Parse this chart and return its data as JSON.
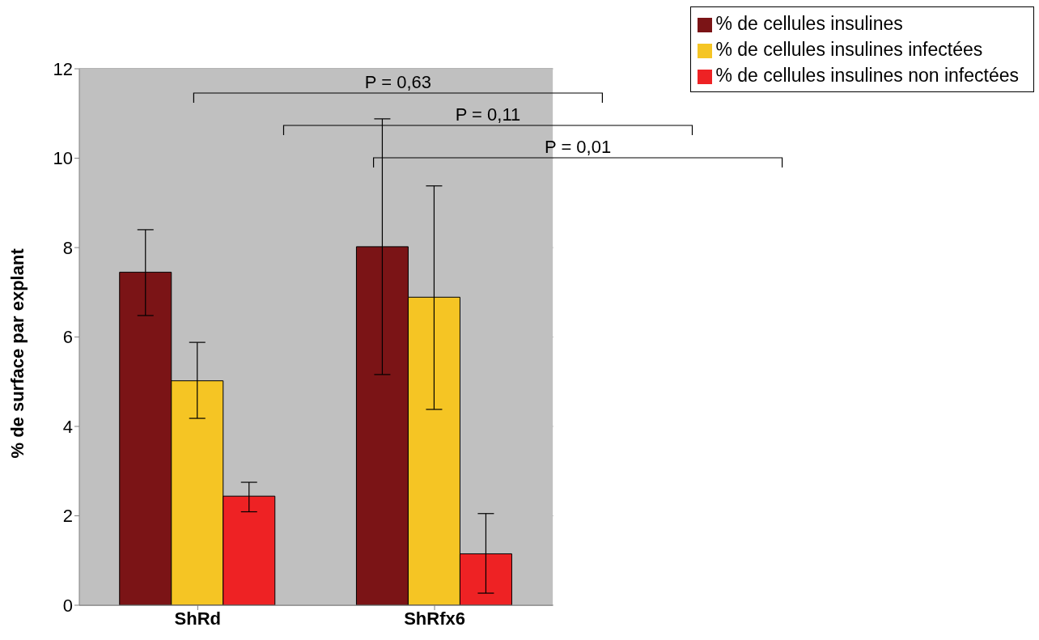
{
  "chart_data": {
    "type": "bar",
    "categories": [
      "ShRd",
      "ShRfx6"
    ],
    "ylabel": "% de surface par  explant",
    "series": [
      {
        "name": "% de cellules insulines",
        "color": "#7b1416",
        "values": [
          7.45,
          8.02
        ],
        "errors": [
          [
            6.48,
            8.4
          ],
          [
            5.16,
            10.88
          ]
        ]
      },
      {
        "name": "% de cellules insulines infectées",
        "color": "#f5c524",
        "values": [
          5.02,
          6.89
        ],
        "errors": [
          [
            4.18,
            5.88
          ],
          [
            4.38,
            9.38
          ]
        ]
      },
      {
        "name": "% de cellules insulines non infectées",
        "color": "#ee2224",
        "values": [
          2.44,
          1.15
        ],
        "errors": [
          [
            2.09,
            2.75
          ],
          [
            0.27,
            2.05
          ]
        ]
      }
    ],
    "annotations": [
      "P = 0,63",
      "P = 0,11",
      "P = 0,01"
    ],
    "ylim": [
      0,
      12
    ],
    "yticks": [
      0,
      2,
      4,
      6,
      8,
      10,
      12
    ],
    "grid": "y",
    "legend": "top right"
  }
}
